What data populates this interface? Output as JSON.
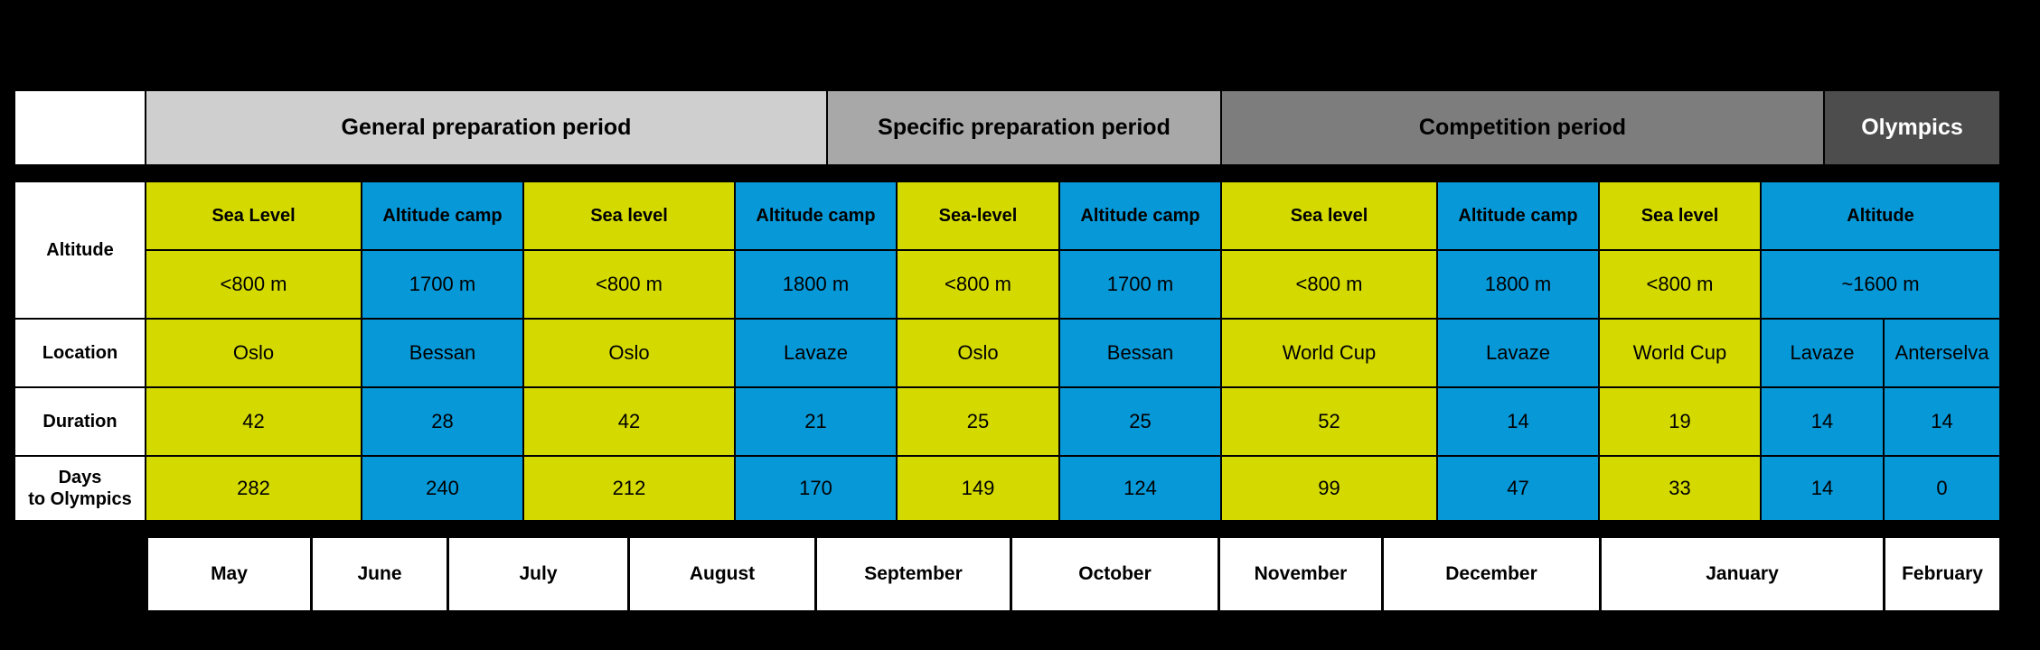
{
  "periods": {
    "general": "General preparation period",
    "specific": "Specific preparation period",
    "competition": "Competition period",
    "olympics": "Olympics"
  },
  "row_labels": {
    "altitude": "Altitude",
    "location": "Location",
    "duration": "Duration",
    "days_line1": "Days",
    "days_line2": "to Olympics"
  },
  "blocks": [
    {
      "type": "Sea Level",
      "elevation": "<800 m",
      "location": "Oslo",
      "duration": "42",
      "days_to_olympics": "282"
    },
    {
      "type": "Altitude camp",
      "elevation": "1700 m",
      "location": "Bessan",
      "duration": "28",
      "days_to_olympics": "240"
    },
    {
      "type": "Sea level",
      "elevation": "<800 m",
      "location": "Oslo",
      "duration": "42",
      "days_to_olympics": "212"
    },
    {
      "type": "Altitude camp",
      "elevation": "1800 m",
      "location": "Lavaze",
      "duration": "21",
      "days_to_olympics": "170"
    },
    {
      "type": "Sea-level",
      "elevation": "<800 m",
      "location": "Oslo",
      "duration": "25",
      "days_to_olympics": "149"
    },
    {
      "type": "Altitude camp",
      "elevation": "1700 m",
      "location": "Bessan",
      "duration": "25",
      "days_to_olympics": "124"
    },
    {
      "type": "Sea level",
      "elevation": "<800 m",
      "location": "World Cup",
      "duration": "52",
      "days_to_olympics": "99"
    },
    {
      "type": "Altitude camp",
      "elevation": "1800 m",
      "location": "Lavaze",
      "duration": "14",
      "days_to_olympics": "47"
    },
    {
      "type": "Sea level",
      "elevation": "<800 m",
      "location": "World Cup",
      "duration": "19",
      "days_to_olympics": "33"
    }
  ],
  "final_block": {
    "type": "Altitude",
    "elevation": "~1600 m",
    "sub": [
      {
        "location": "Lavaze",
        "duration": "14",
        "days_to_olympics": "14"
      },
      {
        "location": "Anterselva",
        "duration": "14",
        "days_to_olympics": "0"
      }
    ]
  },
  "months": [
    "May",
    "June",
    "July",
    "August",
    "September",
    "October",
    "November",
    "December",
    "January",
    "February"
  ],
  "colors": {
    "sea_level": "#d4da00",
    "altitude": "#0798d8",
    "general_period": "#cfcfcf",
    "specific_period": "#a8a8a8",
    "competition_period": "#7d7d7d",
    "olympics_period": "#4d4d4d"
  }
}
